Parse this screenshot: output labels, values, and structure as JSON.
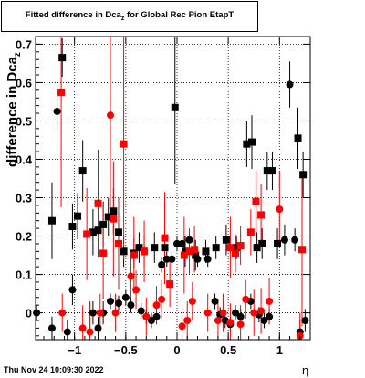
{
  "chart_data": {
    "type": "scatter",
    "title": "Fitted difference in Dca_z for Global Rec Pion EtapT",
    "title_main": "Fitted difference in Dca",
    "title_sub": "z",
    "title_rest": " for Global Rec Pion EtapT",
    "ylabel": "difference in Dca",
    "ylabel_sub": "z",
    "xlabel": "η",
    "timestamp": "Thu Nov 24 10:09:30 2022",
    "xlim": [
      -1.38,
      1.3
    ],
    "ylim": [
      -0.07,
      0.72
    ],
    "xticks": [
      -1,
      -0.5,
      0,
      0.5,
      1
    ],
    "yticks": [
      0,
      0.1,
      0.2,
      0.3,
      0.4,
      0.5,
      0.6,
      0.7
    ],
    "xtick_labels": [
      "−1",
      "−0.5",
      "0",
      "0.5",
      "1"
    ],
    "ytick_labels": [
      "0",
      "0.1",
      "0.2",
      "0.3",
      "0.4",
      "0.5",
      "0.6",
      "0.7"
    ],
    "grid": true,
    "colors": {
      "black_series": "#000000",
      "red_series": "#ff0000",
      "grid": "#000000"
    },
    "series": [
      {
        "marker": "square",
        "color": "black",
        "points": [
          [
            -1.22,
            0.24,
            0.1
          ],
          [
            -1.12,
            0.665,
            0.05
          ],
          [
            -1.02,
            0.225,
            0.06
          ],
          [
            -0.97,
            0.252,
            0.06
          ],
          [
            -0.92,
            0.37,
            0.08
          ],
          [
            -0.82,
            0.21,
            0.06
          ],
          [
            -0.77,
            0.215,
            0.05
          ],
          [
            -0.72,
            0.23,
            0.06
          ],
          [
            -0.67,
            0.25,
            0.05
          ],
          [
            -0.62,
            0.265,
            0.06
          ],
          [
            -0.57,
            0.21,
            0.05
          ],
          [
            -0.52,
            0.16,
            0.04
          ],
          [
            -0.42,
            0.155,
            0.04
          ],
          [
            -0.37,
            0.17,
            0.04
          ],
          [
            -0.32,
            0.16,
            0.04
          ],
          [
            -0.22,
            0.17,
            0.04
          ],
          [
            -0.12,
            0.17,
            0.03
          ],
          [
            -0.02,
            0.535,
            0.2
          ],
          [
            0.08,
            0.16,
            0.04
          ],
          [
            0.18,
            0.15,
            0.04
          ],
          [
            0.28,
            0.16,
            0.03
          ],
          [
            0.38,
            0.17,
            0.03
          ],
          [
            0.48,
            0.19,
            0.04
          ],
          [
            0.58,
            0.17,
            0.03
          ],
          [
            0.68,
            0.44,
            0.06
          ],
          [
            0.73,
            0.445,
            0.07
          ],
          [
            0.78,
            0.17,
            0.04
          ],
          [
            0.83,
            0.18,
            0.04
          ],
          [
            0.88,
            0.37,
            0.05
          ],
          [
            0.93,
            0.37,
            0.05
          ],
          [
            0.98,
            0.18,
            0.04
          ],
          [
            1.18,
            0.455,
            0.08
          ],
          [
            1.23,
            0.36,
            0.06
          ]
        ]
      },
      {
        "marker": "circle",
        "color": "black",
        "points": [
          [
            -1.37,
            0.0,
            0.02
          ],
          [
            -1.22,
            -0.04,
            0.03
          ],
          [
            -1.17,
            0.525,
            0.05
          ],
          [
            -1.07,
            -0.05,
            0.03
          ],
          [
            -1.02,
            0.06,
            0.04
          ],
          [
            -0.82,
            0.0,
            0.03
          ],
          [
            -0.77,
            -0.04,
            0.03
          ],
          [
            -0.72,
            0.0,
            0.03
          ],
          [
            -0.65,
            0.03,
            0.02
          ],
          [
            -0.57,
            0.025,
            0.02
          ],
          [
            -0.5,
            0.04,
            0.02
          ],
          [
            -0.45,
            0.02,
            0.02
          ],
          [
            -0.35,
            0.005,
            0.02
          ],
          [
            -0.3,
            -0.01,
            0.02
          ],
          [
            -0.25,
            -0.02,
            0.02
          ],
          [
            -0.2,
            -0.01,
            0.02
          ],
          [
            -0.15,
            0.125,
            0.02
          ],
          [
            -0.1,
            0.14,
            0.02
          ],
          [
            -0.05,
            0.14,
            0.02
          ],
          [
            0.0,
            0.18,
            0.02
          ],
          [
            0.05,
            0.18,
            0.02
          ],
          [
            0.12,
            0.19,
            0.02
          ],
          [
            0.2,
            0.14,
            0.02
          ],
          [
            0.3,
            0.14,
            0.02
          ],
          [
            0.37,
            0.03,
            0.02
          ],
          [
            0.42,
            -0.005,
            0.02
          ],
          [
            0.47,
            -0.02,
            0.02
          ],
          [
            0.52,
            -0.03,
            0.02
          ],
          [
            0.57,
            0.0,
            0.02
          ],
          [
            0.62,
            -0.01,
            0.02
          ],
          [
            0.72,
            0.03,
            0.02
          ],
          [
            0.8,
            -0.005,
            0.02
          ],
          [
            0.85,
            -0.02,
            0.02
          ],
          [
            0.9,
            -0.01,
            0.02
          ],
          [
            1.05,
            0.19,
            0.04
          ],
          [
            1.1,
            0.595,
            0.06
          ],
          [
            1.15,
            0.19,
            0.03
          ],
          [
            1.2,
            -0.05,
            0.03
          ],
          [
            1.25,
            -0.02,
            0.03
          ]
        ]
      },
      {
        "marker": "square",
        "color": "red",
        "points": [
          [
            -1.13,
            0.575,
            0.3
          ],
          [
            -0.88,
            0.205,
            0.12
          ],
          [
            -0.77,
            0.285,
            0.14
          ],
          [
            -0.72,
            0.155,
            0.12
          ],
          [
            -0.62,
            0.245,
            0.15
          ],
          [
            -0.57,
            0.18,
            0.12
          ],
          [
            -0.52,
            0.44,
            0.3
          ],
          [
            -0.42,
            0.15,
            0.1
          ],
          [
            -0.32,
            0.16,
            0.08
          ],
          [
            -0.12,
            0.195,
            0.12
          ],
          [
            -0.07,
            0.075,
            0.06
          ],
          [
            0.07,
            0.15,
            0.1
          ],
          [
            0.12,
            0.16,
            0.06
          ],
          [
            0.17,
            0.165,
            0.06
          ],
          [
            0.52,
            0.17,
            0.08
          ],
          [
            0.57,
            0.155,
            0.05
          ],
          [
            0.62,
            0.175,
            0.05
          ],
          [
            0.72,
            0.21,
            0.06
          ],
          [
            0.77,
            0.29,
            0.08
          ],
          [
            0.82,
            0.255,
            0.08
          ],
          [
            1.22,
            0.165,
            0.2
          ]
        ]
      },
      {
        "marker": "circle",
        "color": "red",
        "points": [
          [
            -1.12,
            0.0,
            0.05
          ],
          [
            -0.92,
            -0.04,
            0.06
          ],
          [
            -0.85,
            -0.05,
            0.08
          ],
          [
            -0.75,
            0.0,
            0.05
          ],
          [
            -0.65,
            0.515,
            0.25
          ],
          [
            -0.6,
            0.0,
            0.05
          ],
          [
            -0.45,
            0.095,
            0.06
          ],
          [
            -0.4,
            0.06,
            0.05
          ],
          [
            -0.3,
            -0.01,
            0.05
          ],
          [
            -0.2,
            0.02,
            0.05
          ],
          [
            -0.15,
            0.035,
            0.05
          ],
          [
            0.05,
            -0.035,
            0.05
          ],
          [
            0.1,
            -0.02,
            0.05
          ],
          [
            0.15,
            0.03,
            0.05
          ],
          [
            0.3,
            0.0,
            0.05
          ],
          [
            0.4,
            -0.02,
            0.05
          ],
          [
            0.45,
            0.0,
            0.05
          ],
          [
            0.52,
            -0.025,
            0.05
          ],
          [
            0.62,
            -0.03,
            0.05
          ],
          [
            0.67,
            0.035,
            0.05
          ],
          [
            0.75,
            0.0,
            0.06
          ],
          [
            0.82,
            0.005,
            0.06
          ],
          [
            0.9,
            0.03,
            0.06
          ],
          [
            1.0,
            0.27,
            0.1
          ],
          [
            1.2,
            -0.06,
            0.06
          ]
        ]
      }
    ]
  }
}
